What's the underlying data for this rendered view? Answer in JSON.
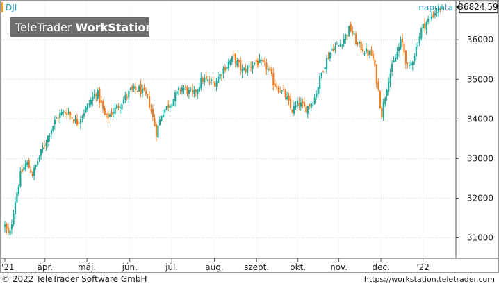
{
  "chart_data": {
    "type": "candlestick",
    "symbol": "DJI",
    "period_label": "naponta",
    "last_value_label": "36824,59",
    "last_value": 36824.59,
    "ylim": [
      30500,
      36950
    ],
    "y_ticks": [
      31000,
      32000,
      33000,
      34000,
      35000,
      36000
    ],
    "y_tick_labels": [
      "31000",
      "32000",
      "33000",
      "34000",
      "35000",
      "36000"
    ],
    "x_ticks": [
      {
        "label": "'21",
        "pos": 0.0
      },
      {
        "label": "ápr.",
        "pos": 0.0896
      },
      {
        "label": "máj.",
        "pos": 0.1831
      },
      {
        "label": "jún.",
        "pos": 0.2787
      },
      {
        "label": "júl.",
        "pos": 0.3723
      },
      {
        "label": "aug.",
        "pos": 0.4674
      },
      {
        "label": "szept.",
        "pos": 0.5615
      },
      {
        "label": "okt.",
        "pos": 0.6538
      },
      {
        "label": "nov.",
        "pos": 0.7451
      },
      {
        "label": "dec.",
        "pos": 0.8389
      },
      {
        "label": "'22",
        "pos": 0.9328
      }
    ],
    "up_color": "#1ba99a",
    "down_color": "#f07a1e",
    "close_path": [
      [
        0.0,
        31300
      ],
      [
        0.01,
        31000
      ],
      [
        0.022,
        31900
      ],
      [
        0.035,
        32600
      ],
      [
        0.048,
        32900
      ],
      [
        0.062,
        32600
      ],
      [
        0.075,
        33000
      ],
      [
        0.09,
        33400
      ],
      [
        0.105,
        33800
      ],
      [
        0.12,
        34100
      ],
      [
        0.14,
        34200
      ],
      [
        0.16,
        33900
      ],
      [
        0.183,
        34300
      ],
      [
        0.205,
        34700
      ],
      [
        0.225,
        34000
      ],
      [
        0.25,
        34300
      ],
      [
        0.27,
        34550
      ],
      [
        0.28,
        34700
      ],
      [
        0.3,
        34750
      ],
      [
        0.32,
        34500
      ],
      [
        0.338,
        33650
      ],
      [
        0.35,
        34150
      ],
      [
        0.372,
        34450
      ],
      [
        0.395,
        34800
      ],
      [
        0.42,
        34600
      ],
      [
        0.44,
        35000
      ],
      [
        0.467,
        34900
      ],
      [
        0.49,
        35300
      ],
      [
        0.51,
        35550
      ],
      [
        0.53,
        35200
      ],
      [
        0.56,
        35450
      ],
      [
        0.585,
        35300
      ],
      [
        0.6,
        34900
      ],
      [
        0.625,
        34600
      ],
      [
        0.64,
        34200
      ],
      [
        0.655,
        34400
      ],
      [
        0.67,
        34250
      ],
      [
        0.69,
        34500
      ],
      [
        0.71,
        35300
      ],
      [
        0.73,
        35800
      ],
      [
        0.745,
        35850
      ],
      [
        0.76,
        36100
      ],
      [
        0.77,
        36300
      ],
      [
        0.785,
        35900
      ],
      [
        0.805,
        35700
      ],
      [
        0.82,
        35600
      ],
      [
        0.832,
        34800
      ],
      [
        0.84,
        34100
      ],
      [
        0.855,
        35000
      ],
      [
        0.87,
        35500
      ],
      [
        0.885,
        36000
      ],
      [
        0.9,
        35200
      ],
      [
        0.915,
        35700
      ],
      [
        0.93,
        36300
      ],
      [
        0.945,
        36500
      ],
      [
        0.96,
        36700
      ],
      [
        0.975,
        36824.59
      ]
    ],
    "grid": true
  },
  "header": {
    "symbol": "DJI",
    "period": "naponta"
  },
  "watermark": {
    "text_normal": "TeleTrader ",
    "text_bold": "WorkStation"
  },
  "footer": {
    "copyright": "© 2022 TeleTrader Software GmbH",
    "url": "https://workstation.teletrader.com"
  }
}
